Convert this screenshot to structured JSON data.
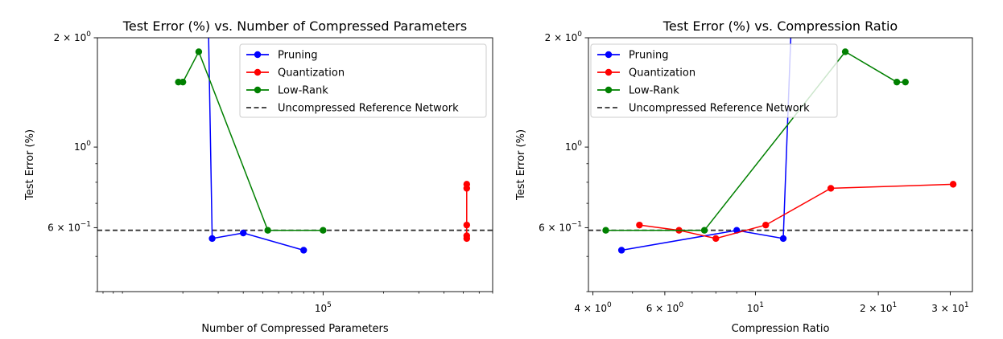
{
  "chart_data": [
    {
      "type": "line",
      "title": "Test Error (%) vs. Number of Compressed Parameters",
      "xlabel": "Number of Compressed Parameters",
      "ylabel": "Test Error (%)",
      "xscale": "log",
      "yscale": "log",
      "xlim": [
        7500,
        700000
      ],
      "ylim": [
        0.4,
        2.0
      ],
      "grid": false,
      "legend_position": "top-right",
      "x_ticks": [
        {
          "value": 100000,
          "label": "10^5"
        }
      ],
      "y_ticks": [
        {
          "value": 2.0,
          "label": "2 × 10^0"
        },
        {
          "value": 1.0,
          "label": "10^0"
        },
        {
          "value": 0.6,
          "label": "6 × 10^−1"
        }
      ],
      "series": [
        {
          "name": "Pruning",
          "color": "#0000ff",
          "x": [
            26700,
            28000,
            40000,
            80000
          ],
          "y": [
            2.5,
            0.56,
            0.58,
            0.52
          ]
        },
        {
          "name": "Quantization",
          "color": "#ff0000",
          "x": [
            520000,
            520000,
            520000,
            520000,
            520000
          ],
          "y": [
            0.56,
            0.57,
            0.61,
            0.77,
            0.79
          ]
        },
        {
          "name": "Low-Rank",
          "color": "#008000",
          "x": [
            19000,
            20000,
            24000,
            53000,
            100000
          ],
          "y": [
            1.51,
            1.51,
            1.83,
            0.59,
            0.59
          ]
        }
      ],
      "reference": {
        "name": "Uncompressed Reference Network",
        "color": "#333333",
        "y": 0.59
      }
    },
    {
      "type": "line",
      "title": "Test Error (%) vs. Compression Ratio",
      "xlabel": "Compression Ratio",
      "ylabel": "Test Error (%)",
      "xscale": "log",
      "yscale": "log",
      "xlim": [
        3.9,
        34
      ],
      "ylim": [
        0.4,
        2.0
      ],
      "grid": false,
      "legend_position": "top-left",
      "x_ticks": [
        {
          "value": 4,
          "label": "4 × 10^0"
        },
        {
          "value": 6,
          "label": "6 × 10^0"
        },
        {
          "value": 10,
          "label": "10^1"
        },
        {
          "value": 20,
          "label": "2 × 10^1"
        },
        {
          "value": 30,
          "label": "3 × 10^1"
        }
      ],
      "y_ticks": [
        {
          "value": 2.0,
          "label": "2 × 10^0"
        },
        {
          "value": 1.0,
          "label": "10^0"
        },
        {
          "value": 0.6,
          "label": "6 × 10^−1"
        }
      ],
      "series": [
        {
          "name": "Pruning",
          "color": "#0000ff",
          "x": [
            4.7,
            9.0,
            11.7,
            12.3
          ],
          "y": [
            0.52,
            0.59,
            0.56,
            2.5
          ]
        },
        {
          "name": "Quantization",
          "color": "#ff0000",
          "x": [
            5.2,
            6.5,
            8.0,
            10.6,
            15.3,
            30.5
          ],
          "y": [
            0.61,
            0.59,
            0.56,
            0.61,
            0.77,
            0.79
          ]
        },
        {
          "name": "Low-Rank",
          "color": "#008000",
          "x": [
            4.3,
            7.5,
            16.6,
            22.2,
            23.3
          ],
          "y": [
            0.59,
            0.59,
            1.83,
            1.51,
            1.51
          ]
        }
      ],
      "reference": {
        "name": "Uncompressed Reference Network",
        "color": "#333333",
        "y": 0.59
      }
    }
  ]
}
